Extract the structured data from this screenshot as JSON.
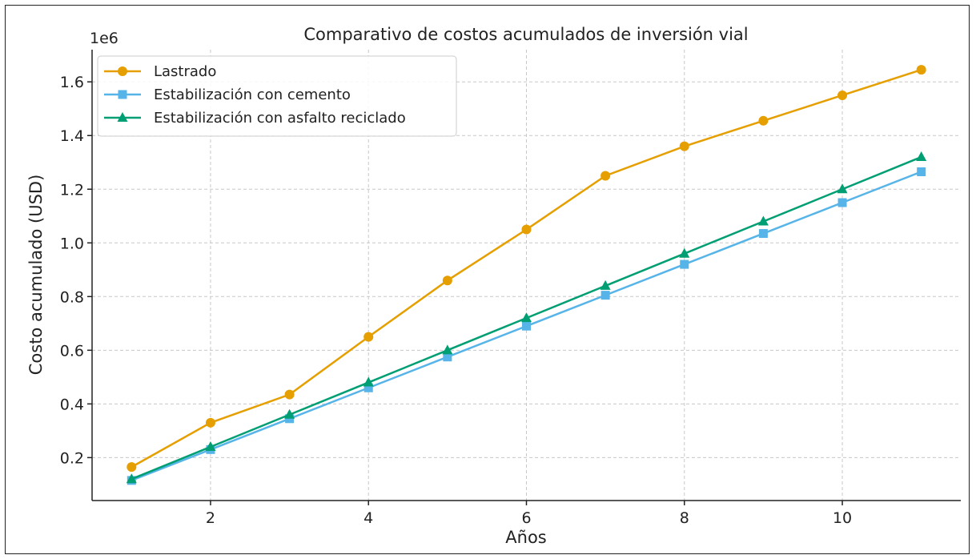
{
  "chart_data": {
    "type": "line",
    "title": "Comparativo de costos acumulados de inversión vial",
    "xlabel": "Años",
    "ylabel": "Costo acumulado (USD)",
    "y_offset_label": "1e6",
    "xlim": [
      0.5,
      11.5
    ],
    "ylim": [
      0.04,
      1.72
    ],
    "xticks": [
      2,
      4,
      6,
      8,
      10
    ],
    "xtick_labels": [
      "2",
      "4",
      "6",
      "8",
      "10"
    ],
    "yticks": [
      0.2,
      0.4,
      0.6,
      0.8,
      1.0,
      1.2,
      1.4,
      1.6
    ],
    "ytick_labels": [
      "0.2",
      "0.4",
      "0.6",
      "0.8",
      "1.0",
      "1.2",
      "1.4",
      "1.6"
    ],
    "grid": true,
    "legend_position": "top-left",
    "x": [
      1,
      2,
      3,
      4,
      5,
      6,
      7,
      8,
      9,
      10,
      11
    ],
    "series": [
      {
        "name": "Lastrado",
        "color": "#E69F00",
        "marker": "circle",
        "values": [
          0.165,
          0.33,
          0.435,
          0.65,
          0.86,
          1.05,
          1.25,
          1.36,
          1.455,
          1.55,
          1.645
        ]
      },
      {
        "name": "Estabilización con cemento",
        "color": "#56B4E9",
        "marker": "square",
        "values": [
          0.115,
          0.23,
          0.345,
          0.46,
          0.575,
          0.69,
          0.805,
          0.92,
          1.035,
          1.15,
          1.265
        ]
      },
      {
        "name": "Estabilización con asfalto reciclado",
        "color": "#009E73",
        "marker": "triangle",
        "values": [
          0.12,
          0.24,
          0.36,
          0.48,
          0.6,
          0.72,
          0.84,
          0.96,
          1.08,
          1.2,
          1.32
        ]
      }
    ]
  }
}
